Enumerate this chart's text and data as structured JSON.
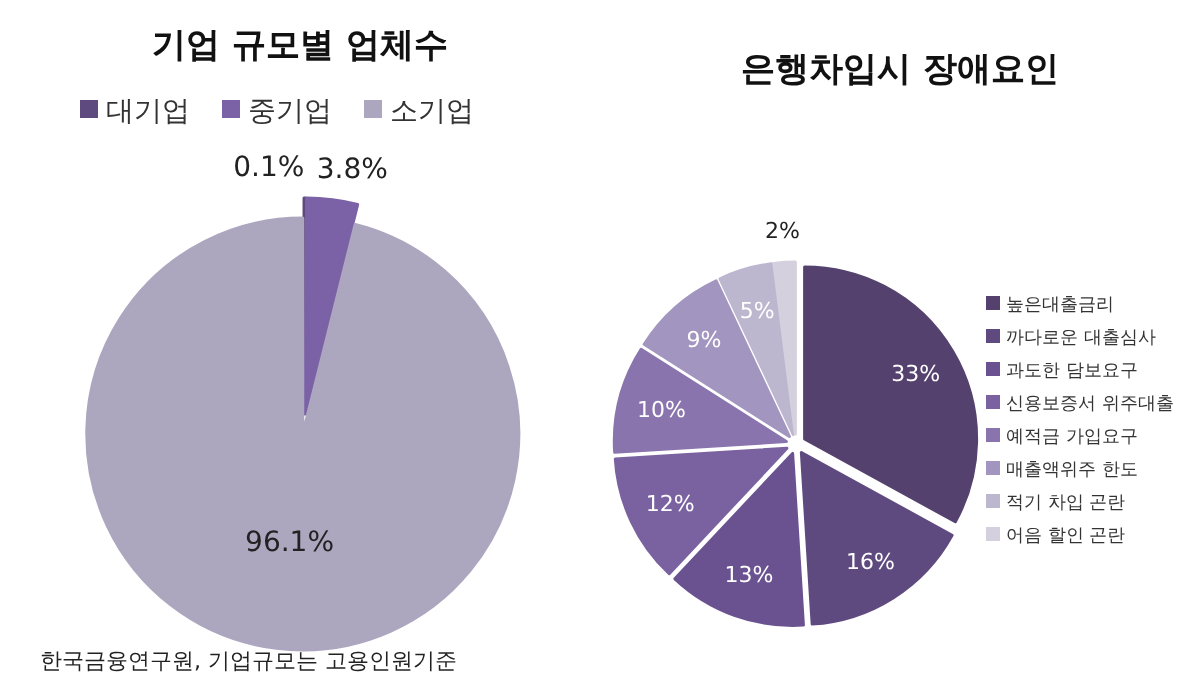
{
  "chart_data": [
    {
      "type": "pie",
      "title": "기업 규모별 업체수",
      "categories": [
        "대기업",
        "중기업",
        "소기업"
      ],
      "values": [
        0.1,
        3.8,
        96.1
      ],
      "value_labels": [
        "0.1%",
        "3.8%",
        "96.1%"
      ],
      "colors": [
        "#5e4a7e",
        "#7b62a6",
        "#aca6bf"
      ],
      "legend": "top",
      "annotations": [
        "한국금융연구원, 기업규모는 고용인원기준"
      ]
    },
    {
      "type": "pie",
      "title": "은행차입시 장애요인",
      "categories": [
        "높은대출금리",
        "까다로운 대출심사",
        "과도한 담보요구",
        "신용보증서 위주대출",
        "예적금 가입요구",
        "매출액위주 한도",
        "적기 차입 곤란",
        "어음 할인 곤란"
      ],
      "values": [
        33,
        16,
        13,
        12,
        10,
        9,
        5,
        2
      ],
      "value_labels": [
        "33%",
        "16%",
        "13%",
        "12%",
        "10%",
        "9%",
        "5%",
        "2%"
      ],
      "colors": [
        "#54416e",
        "#5f4a80",
        "#6a5290",
        "#7a62a0",
        "#8a74ae",
        "#a295bf",
        "#bdb6cf",
        "#d4d0de"
      ],
      "legend": "right"
    }
  ]
}
